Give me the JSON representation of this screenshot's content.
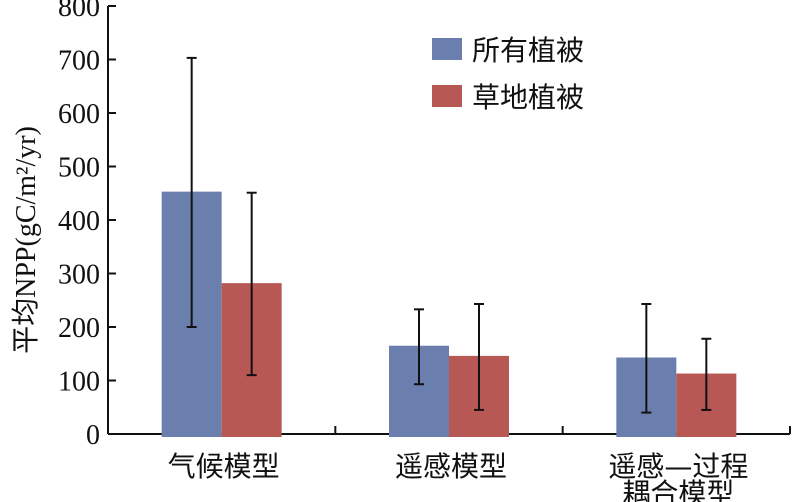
{
  "chart_data": {
    "type": "bar",
    "ylabel": "平均NPP(gC/m²/yr)",
    "ylim": [
      0,
      800
    ],
    "yticks": [
      "0",
      "100",
      "200",
      "300",
      "400",
      "500",
      "600",
      "700",
      "800"
    ],
    "categories": [
      [
        "气候模型"
      ],
      [
        "遥感模型"
      ],
      [
        "遥感—过程",
        "耦合模型"
      ]
    ],
    "series": [
      {
        "name": "所有植被",
        "color": "#6a7fae",
        "values": [
          453,
          165,
          143
        ],
        "error_low": [
          200,
          93,
          40
        ],
        "error_high": [
          703,
          233,
          243
        ]
      },
      {
        "name": "草地植被",
        "color": "#b85855",
        "values": [
          282,
          146,
          113
        ],
        "error_low": [
          110,
          45,
          45
        ],
        "error_high": [
          451,
          243,
          178
        ]
      }
    ],
    "legend_position": "top-center",
    "grid": false
  }
}
